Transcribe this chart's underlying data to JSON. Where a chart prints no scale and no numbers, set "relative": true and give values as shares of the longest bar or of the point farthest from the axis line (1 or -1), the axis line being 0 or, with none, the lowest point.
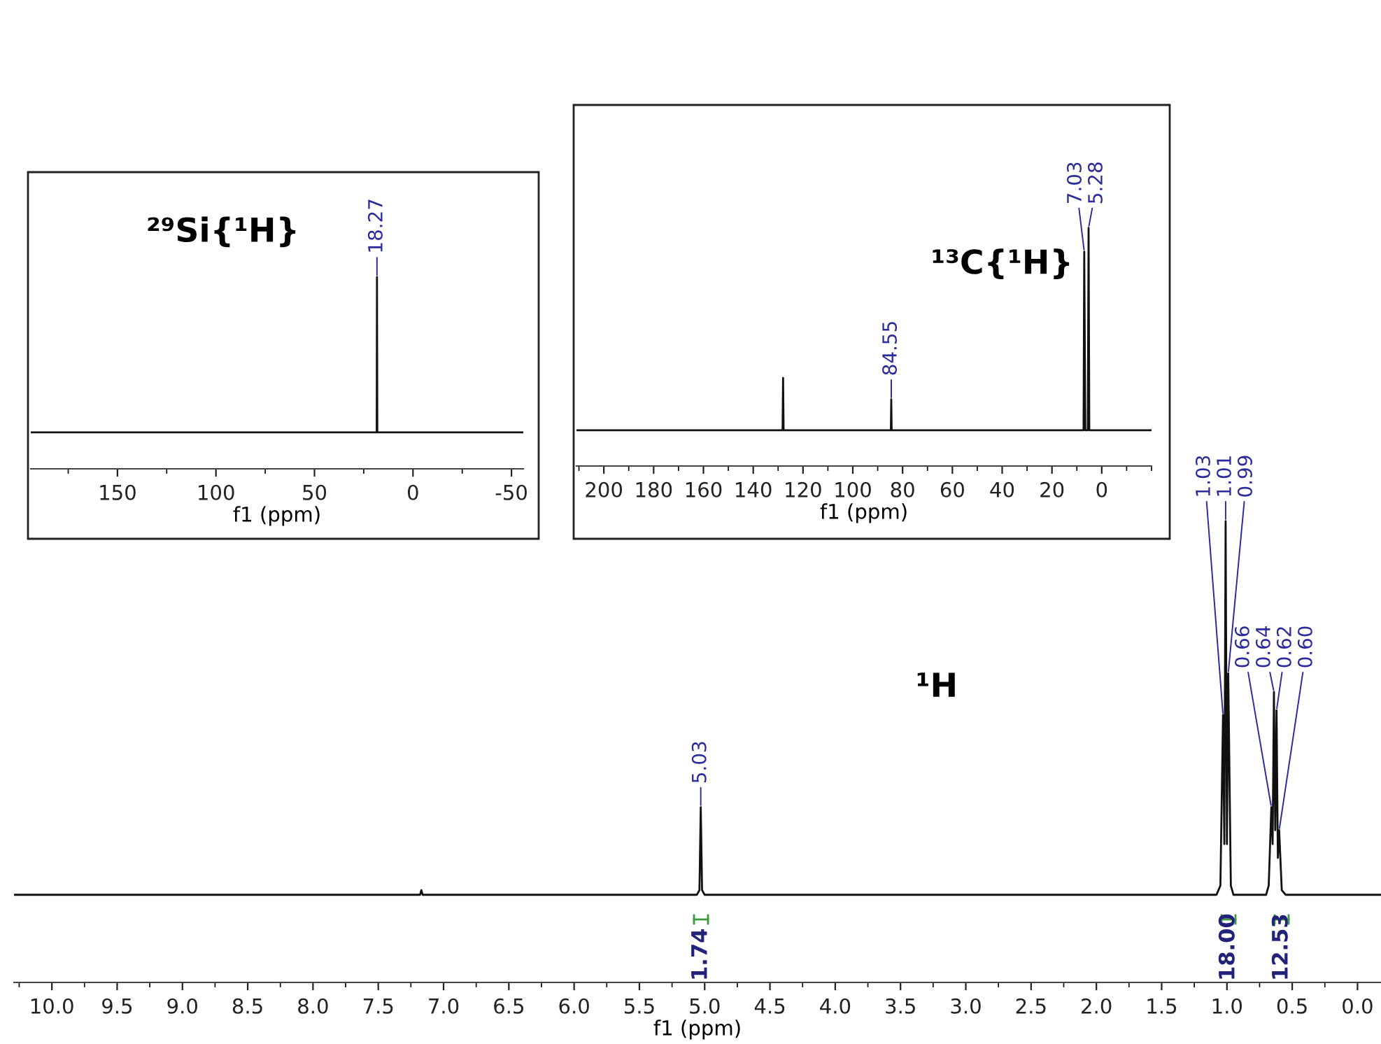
{
  "chart_data": [
    {
      "type": "line",
      "title": "²⁹Si{¹H}",
      "xlabel": "f1 (ppm)",
      "relative": true,
      "xlim": [
        194,
        -56
      ],
      "xticks": [
        150,
        100,
        50,
        0,
        -50
      ],
      "grid": false,
      "legend": false,
      "x": [
        194,
        18.4,
        18.27,
        18.1,
        -56
      ],
      "series": [
        {
          "color": "#111111",
          "values": [
            0.19,
            0.19,
            1,
            0.19,
            0.19
          ]
        }
      ],
      "annotations": [
        {
          "text": "18.27",
          "x": 18.27,
          "y": 1
        }
      ]
    },
    {
      "type": "line",
      "title": "¹³C{¹H}",
      "xlabel": "f1 (ppm)",
      "relative": true,
      "xlim": [
        211,
        -20
      ],
      "xticks": [
        200,
        180,
        160,
        140,
        120,
        100,
        80,
        60,
        40,
        20,
        0
      ],
      "grid": false,
      "legend": false,
      "x": [
        211,
        128.2,
        128,
        127.8,
        84.7,
        84.55,
        84.4,
        7.3,
        7.03,
        6.6,
        5.6,
        5.28,
        5.0,
        -20
      ],
      "series": [
        {
          "color": "#111111",
          "values": [
            0.15,
            0.15,
            0.37,
            0.15,
            0.15,
            0.28,
            0.15,
            0.15,
            0.9,
            0.15,
            0.15,
            1,
            0.15,
            0.15
          ]
        }
      ],
      "annotations": [
        {
          "text": "84.55",
          "x": 84.55,
          "y": 0.28
        },
        {
          "text": "7.03",
          "x": 7.03,
          "y": 0.9
        },
        {
          "text": "5.28",
          "x": 5.28,
          "y": 1
        }
      ]
    },
    {
      "type": "line",
      "title": "¹H",
      "xlabel": "f1 (ppm)",
      "relative": true,
      "xlim": [
        10.29,
        -0.18
      ],
      "grid": false,
      "legend": false,
      "xticks": [
        {
          "value": 10,
          "label": "10.0"
        },
        {
          "value": 9.5,
          "label": "9.5"
        },
        {
          "value": 9,
          "label": "9.0"
        },
        {
          "value": 8.5,
          "label": "8.5"
        },
        {
          "value": 8,
          "label": "8.0"
        },
        {
          "value": 7.5,
          "label": "7.5"
        },
        {
          "value": 7,
          "label": "7.0"
        },
        {
          "value": 6.5,
          "label": "6.5"
        },
        {
          "value": 6,
          "label": "6.0"
        },
        {
          "value": 5.5,
          "label": "5.5"
        },
        {
          "value": 5,
          "label": "5.0"
        },
        {
          "value": 4.5,
          "label": "4.5"
        },
        {
          "value": 4,
          "label": "4.0"
        },
        {
          "value": 3.5,
          "label": "3.5"
        },
        {
          "value": 3,
          "label": "3.0"
        },
        {
          "value": 2.5,
          "label": "2.5"
        },
        {
          "value": 2,
          "label": "2.0"
        },
        {
          "value": 1.5,
          "label": "1.5"
        },
        {
          "value": 1,
          "label": "1.0"
        },
        {
          "value": 0.5,
          "label": "0.5"
        },
        {
          "value": 0,
          "label": "0.0"
        }
      ],
      "x": [
        10.29,
        7.18,
        7.17,
        7.16,
        5.06,
        5.04,
        5.03,
        5.02,
        5.0,
        1.08,
        1.05,
        1.03,
        1.02,
        1.01,
        1.0,
        0.99,
        0.97,
        0.95,
        0.7,
        0.68,
        0.66,
        0.65,
        0.64,
        0.63,
        0.62,
        0.61,
        0.6,
        0.58,
        0.55,
        -0.18
      ],
      "series": [
        {
          "color": "#111111",
          "values": [
            0.19,
            0.19,
            0.2,
            0.19,
            0.19,
            0.2,
            0.38,
            0.2,
            0.19,
            0.19,
            0.21,
            0.58,
            0.3,
            1,
            0.3,
            0.67,
            0.21,
            0.19,
            0.19,
            0.21,
            0.38,
            0.3,
            0.63,
            0.33,
            0.59,
            0.27,
            0.33,
            0.2,
            0.19,
            0.19
          ]
        }
      ],
      "annotations": [
        {
          "text": "5.03",
          "x": 5.03,
          "y": 0.38
        },
        {
          "text": "1.03",
          "x": 1.03,
          "y": 0.58
        },
        {
          "text": "1.01",
          "x": 1.01,
          "y": 1
        },
        {
          "text": "0.99",
          "x": 0.99,
          "y": 0.67
        },
        {
          "text": "0.66",
          "x": 0.66,
          "y": 0.38
        },
        {
          "text": "0.64",
          "x": 0.64,
          "y": 0.63
        },
        {
          "text": "0.62",
          "x": 0.62,
          "y": 0.59
        },
        {
          "text": "0.60",
          "x": 0.6,
          "y": 0.33
        },
        "1.74",
        "18.00",
        "12.53"
      ]
    }
  ]
}
